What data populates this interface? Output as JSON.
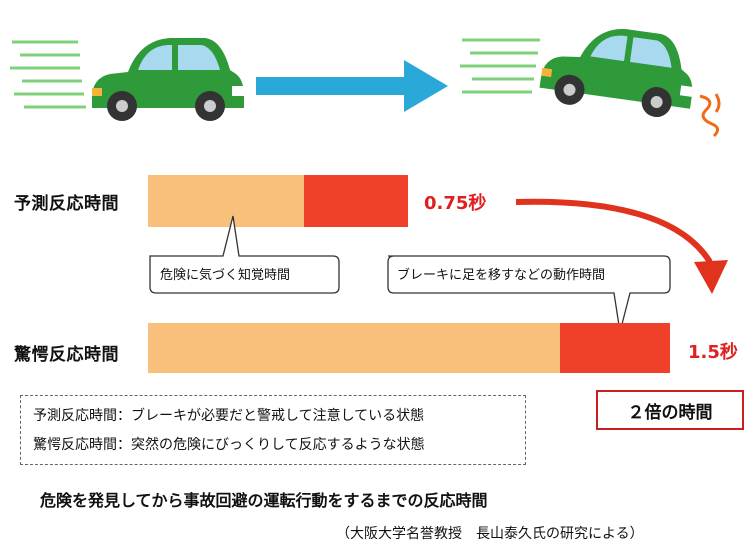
{
  "predictive": {
    "label": "予測反応時間",
    "time": "0.75秒",
    "perception_fraction": 0.6,
    "action_fraction": 0.4
  },
  "surprise": {
    "label": "驚愕反応時間",
    "time": "1.5秒",
    "perception_fraction": 0.79,
    "action_fraction": 0.21
  },
  "bubbles": {
    "perception": "危険に気づく知覚時間",
    "action": "ブレーキに足を移すなどの動作時間"
  },
  "definitions": [
    "予測反応時間：ブレーキが必要だと警戒して注意している状態",
    "驚愕反応時間：突然の危険にびっくりして反応するような状態"
  ],
  "result": "２倍の時間",
  "caption": "危険を発見してから事故回避の運転行動をするまでの反応時間",
  "credit": "（大阪大学名誉教授　長山泰久氏の研究による）",
  "colors": {
    "perception": "#f8c07a",
    "action": "#f0402a",
    "time_text": "#e02020",
    "arrow_blue": "#2aa8d8",
    "car": "#2e9a3a"
  }
}
